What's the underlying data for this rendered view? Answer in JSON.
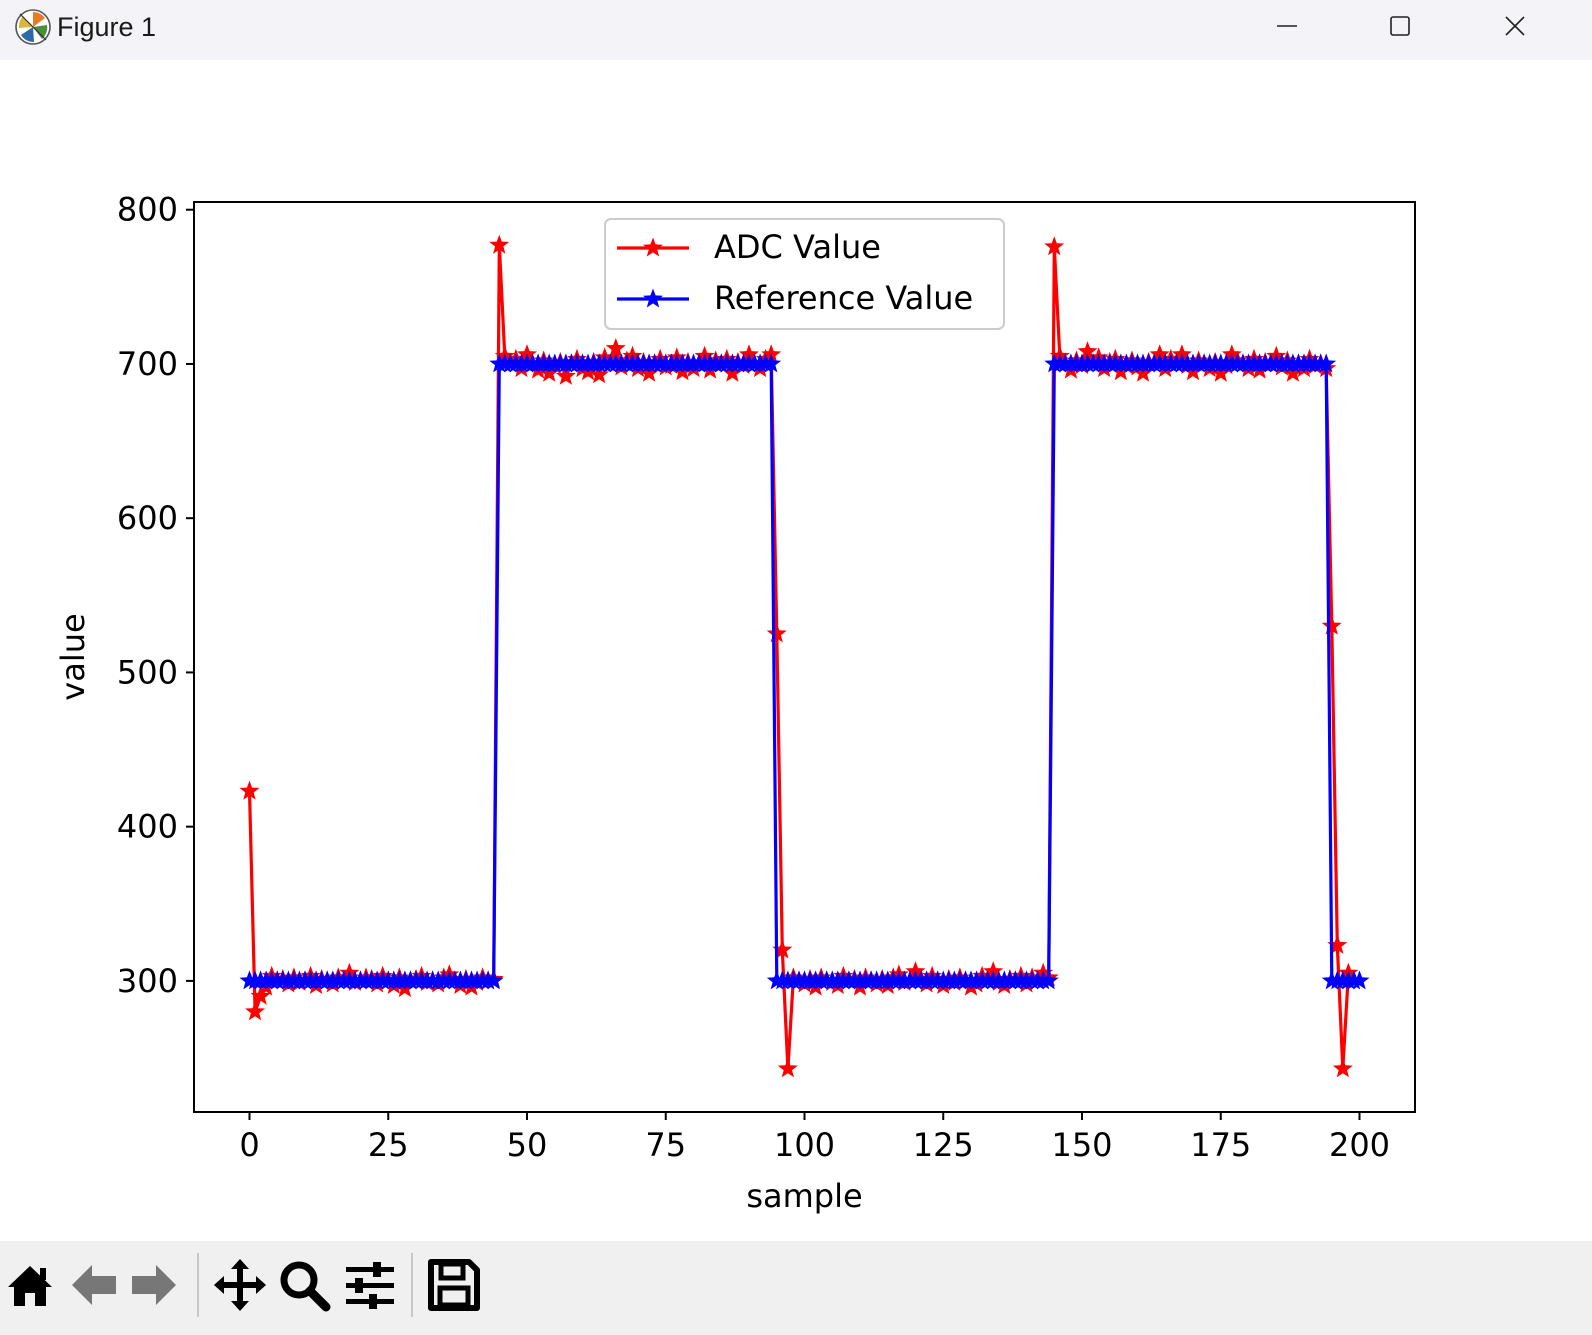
{
  "window": {
    "title": "Figure 1",
    "controls": [
      "minimize",
      "maximize",
      "close"
    ]
  },
  "toolbar": {
    "buttons": [
      "home-icon",
      "back-arrow-icon",
      "forward-arrow-icon",
      "pan-icon",
      "zoom-icon",
      "configure-subplots-icon",
      "save-icon"
    ]
  },
  "chart_data": {
    "type": "line",
    "xlabel": "sample",
    "ylabel": "value",
    "xlim": [
      -10,
      210
    ],
    "ylim": [
      215,
      805
    ],
    "xticks": [
      0,
      25,
      50,
      75,
      100,
      125,
      150,
      175,
      200
    ],
    "yticks": [
      300,
      400,
      500,
      600,
      700,
      800
    ],
    "legend_position": "upper-center",
    "grid": false,
    "series": [
      {
        "name": "ADC Value",
        "color": "#ff0000",
        "marker": "star",
        "x": [
          0,
          1,
          2,
          3,
          4,
          5,
          6,
          7,
          8,
          9,
          10,
          11,
          12,
          13,
          14,
          15,
          16,
          17,
          18,
          19,
          20,
          21,
          22,
          23,
          24,
          25,
          26,
          27,
          28,
          29,
          30,
          31,
          32,
          33,
          34,
          35,
          36,
          37,
          38,
          39,
          40,
          41,
          42,
          43,
          44,
          45,
          46,
          47,
          48,
          49,
          50,
          51,
          52,
          53,
          54,
          55,
          56,
          57,
          58,
          59,
          60,
          61,
          62,
          63,
          64,
          65,
          66,
          67,
          68,
          69,
          70,
          71,
          72,
          73,
          74,
          75,
          76,
          77,
          78,
          79,
          80,
          81,
          82,
          83,
          84,
          85,
          86,
          87,
          88,
          89,
          90,
          91,
          92,
          93,
          94,
          95,
          96,
          97,
          98,
          99,
          100,
          101,
          102,
          103,
          104,
          105,
          106,
          107,
          108,
          109,
          110,
          111,
          112,
          113,
          114,
          115,
          116,
          117,
          118,
          119,
          120,
          121,
          122,
          123,
          124,
          125,
          126,
          127,
          128,
          129,
          130,
          131,
          132,
          133,
          134,
          135,
          136,
          137,
          138,
          139,
          140,
          141,
          142,
          143,
          144,
          145,
          146,
          147,
          148,
          149,
          150,
          151,
          152,
          153,
          154,
          155,
          156,
          157,
          158,
          159,
          160,
          161,
          162,
          163,
          164,
          165,
          166,
          167,
          168,
          169,
          170,
          171,
          172,
          173,
          174,
          175,
          176,
          177,
          178,
          179,
          180,
          181,
          182,
          183,
          184,
          185,
          186,
          187,
          188,
          189,
          190,
          191,
          192,
          193,
          194,
          195,
          196,
          197,
          198,
          199
        ],
        "y": [
          423,
          280,
          290,
          296,
          303,
          300,
          301,
          298,
          302,
          299,
          300,
          303,
          297,
          301,
          300,
          298,
          302,
          300,
          305,
          299,
          300,
          302,
          301,
          298,
          303,
          300,
          297,
          302,
          295,
          300,
          301,
          303,
          299,
          300,
          298,
          302,
          304,
          300,
          297,
          301,
          296,
          299,
          302,
          300,
          301,
          777,
          705,
          700,
          703,
          697,
          706,
          700,
          696,
          702,
          694,
          699,
          701,
          692,
          700,
          703,
          697,
          695,
          701,
          693,
          704,
          700,
          710,
          698,
          702,
          705,
          697,
          701,
          694,
          700,
          703,
          698,
          699,
          704,
          695,
          701,
          697,
          700,
          705,
          696,
          702,
          700,
          703,
          694,
          701,
          699,
          706,
          700,
          697,
          703,
          706,
          525,
          320,
          243,
          302,
          300,
          298,
          301,
          296,
          302,
          300,
          299,
          297,
          303,
          300,
          301,
          296,
          302,
          300,
          298,
          301,
          297,
          302,
          304,
          299,
          300,
          306,
          301,
          298,
          303,
          300,
          297,
          301,
          299,
          302,
          300,
          296,
          298,
          303,
          301,
          306,
          299,
          297,
          301,
          300,
          303,
          298,
          302,
          300,
          305,
          302,
          776,
          705,
          700,
          696,
          702,
          699,
          708,
          700,
          704,
          697,
          701,
          703,
          695,
          699,
          702,
          698,
          694,
          701,
          700,
          706,
          697,
          703,
          700,
          706,
          699,
          695,
          702,
          700,
          697,
          701,
          694,
          699,
          706,
          702,
          700,
          697,
          703,
          696,
          701,
          700,
          705,
          698,
          702,
          694,
          700,
          697,
          703,
          699,
          700,
          697,
          530,
          323,
          243,
          305,
          300
        ]
      },
      {
        "name": "Reference Value",
        "color": "#0000ff",
        "marker": "star",
        "x": [
          0,
          1,
          2,
          3,
          4,
          5,
          6,
          7,
          8,
          9,
          10,
          11,
          12,
          13,
          14,
          15,
          16,
          17,
          18,
          19,
          20,
          21,
          22,
          23,
          24,
          25,
          26,
          27,
          28,
          29,
          30,
          31,
          32,
          33,
          34,
          35,
          36,
          37,
          38,
          39,
          40,
          41,
          42,
          43,
          44,
          45,
          46,
          47,
          48,
          49,
          50,
          51,
          52,
          53,
          54,
          55,
          56,
          57,
          58,
          59,
          60,
          61,
          62,
          63,
          64,
          65,
          66,
          67,
          68,
          69,
          70,
          71,
          72,
          73,
          74,
          75,
          76,
          77,
          78,
          79,
          80,
          81,
          82,
          83,
          84,
          85,
          86,
          87,
          88,
          89,
          90,
          91,
          92,
          93,
          94,
          95,
          96,
          97,
          98,
          99,
          100,
          101,
          102,
          103,
          104,
          105,
          106,
          107,
          108,
          109,
          110,
          111,
          112,
          113,
          114,
          115,
          116,
          117,
          118,
          119,
          120,
          121,
          122,
          123,
          124,
          125,
          126,
          127,
          128,
          129,
          130,
          131,
          132,
          133,
          134,
          135,
          136,
          137,
          138,
          139,
          140,
          141,
          142,
          143,
          144,
          145,
          146,
          147,
          148,
          149,
          150,
          151,
          152,
          153,
          154,
          155,
          156,
          157,
          158,
          159,
          160,
          161,
          162,
          163,
          164,
          165,
          166,
          167,
          168,
          169,
          170,
          171,
          172,
          173,
          174,
          175,
          176,
          177,
          178,
          179,
          180,
          181,
          182,
          183,
          184,
          185,
          186,
          187,
          188,
          189,
          190,
          191,
          192,
          193,
          194,
          195,
          196,
          197,
          198,
          199,
          200
        ],
        "y": [
          300,
          300,
          300,
          300,
          300,
          300,
          300,
          300,
          300,
          300,
          300,
          300,
          300,
          300,
          300,
          300,
          300,
          300,
          300,
          300,
          300,
          300,
          300,
          300,
          300,
          300,
          300,
          300,
          300,
          300,
          300,
          300,
          300,
          300,
          300,
          300,
          300,
          300,
          300,
          300,
          300,
          300,
          300,
          300,
          300,
          700,
          700,
          700,
          700,
          700,
          700,
          700,
          700,
          700,
          700,
          700,
          700,
          700,
          700,
          700,
          700,
          700,
          700,
          700,
          700,
          700,
          700,
          700,
          700,
          700,
          700,
          700,
          700,
          700,
          700,
          700,
          700,
          700,
          700,
          700,
          700,
          700,
          700,
          700,
          700,
          700,
          700,
          700,
          700,
          700,
          700,
          700,
          700,
          700,
          700,
          300,
          300,
          300,
          300,
          300,
          300,
          300,
          300,
          300,
          300,
          300,
          300,
          300,
          300,
          300,
          300,
          300,
          300,
          300,
          300,
          300,
          300,
          300,
          300,
          300,
          300,
          300,
          300,
          300,
          300,
          300,
          300,
          300,
          300,
          300,
          300,
          300,
          300,
          300,
          300,
          300,
          300,
          300,
          300,
          300,
          300,
          300,
          300,
          300,
          300,
          700,
          700,
          700,
          700,
          700,
          700,
          700,
          700,
          700,
          700,
          700,
          700,
          700,
          700,
          700,
          700,
          700,
          700,
          700,
          700,
          700,
          700,
          700,
          700,
          700,
          700,
          700,
          700,
          700,
          700,
          700,
          700,
          700,
          700,
          700,
          700,
          700,
          700,
          700,
          700,
          700,
          700,
          700,
          700,
          700,
          700,
          700,
          700,
          700,
          700,
          300,
          300,
          300,
          300,
          300,
          300
        ]
      }
    ]
  }
}
